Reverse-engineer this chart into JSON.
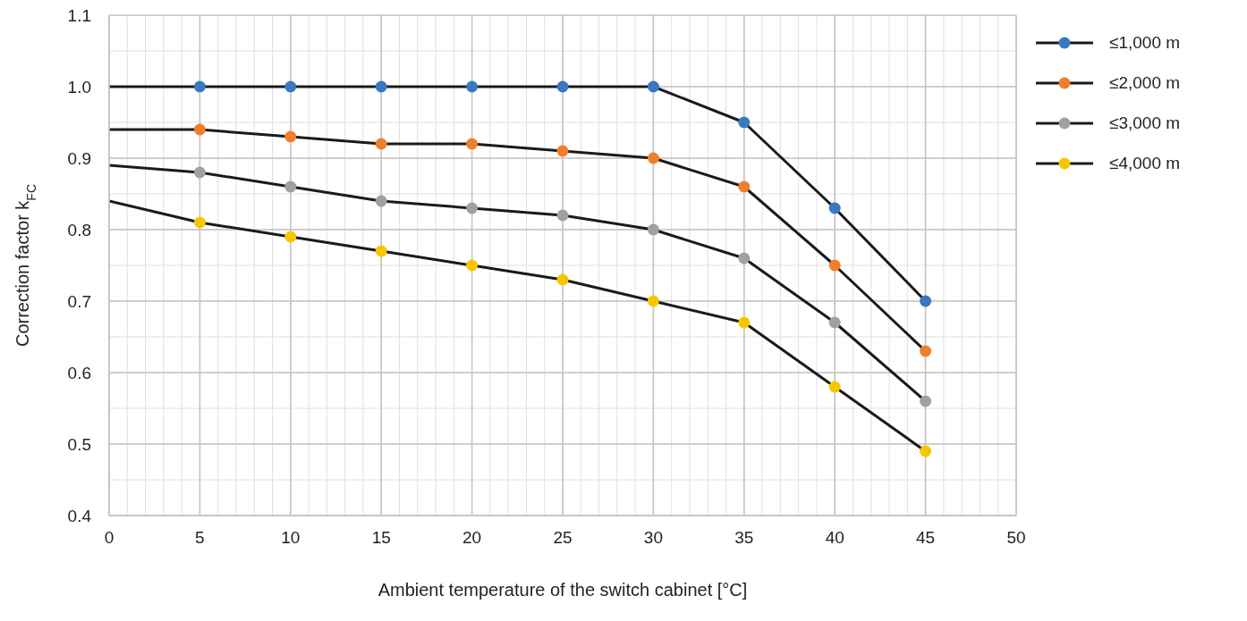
{
  "chart_data": {
    "type": "line",
    "xlabel": "Ambient temperature of the switch cabinet [°C]",
    "ylabel": "Correction factor k$_{FC}$",
    "x": [
      0,
      5,
      10,
      15,
      20,
      25,
      30,
      35,
      40,
      45
    ],
    "series": [
      {
        "name": "≤1,000 m",
        "color": "#3a78c0",
        "values": [
          1.0,
          1.0,
          1.0,
          1.0,
          1.0,
          1.0,
          1.0,
          0.95,
          0.83,
          0.7
        ]
      },
      {
        "name": "≤2,000 m",
        "color": "#f07f2a",
        "values": [
          0.94,
          0.94,
          0.93,
          0.92,
          0.92,
          0.91,
          0.9,
          0.86,
          0.75,
          0.63
        ]
      },
      {
        "name": "≤3,000 m",
        "color": "#a0a0a0",
        "values": [
          0.89,
          0.88,
          0.86,
          0.84,
          0.83,
          0.82,
          0.8,
          0.76,
          0.67,
          0.56
        ]
      },
      {
        "name": "≤4,000 m",
        "color": "#f8c600",
        "values": [
          0.84,
          0.81,
          0.79,
          0.77,
          0.75,
          0.73,
          0.7,
          0.67,
          0.58,
          0.49
        ]
      }
    ],
    "xlim": [
      0,
      50
    ],
    "xticks": [
      0,
      5,
      10,
      15,
      20,
      25,
      30,
      35,
      40,
      45,
      50
    ],
    "ylim": [
      0.4,
      1.1
    ],
    "yticks": [
      0.4,
      0.5,
      0.6,
      0.7,
      0.8,
      0.9,
      {
        "value": 1,
        "label": "1.0"
      },
      1.1
    ],
    "grid": true,
    "legend": "top right",
    "marker": "circle",
    "line_style": "solid"
  }
}
